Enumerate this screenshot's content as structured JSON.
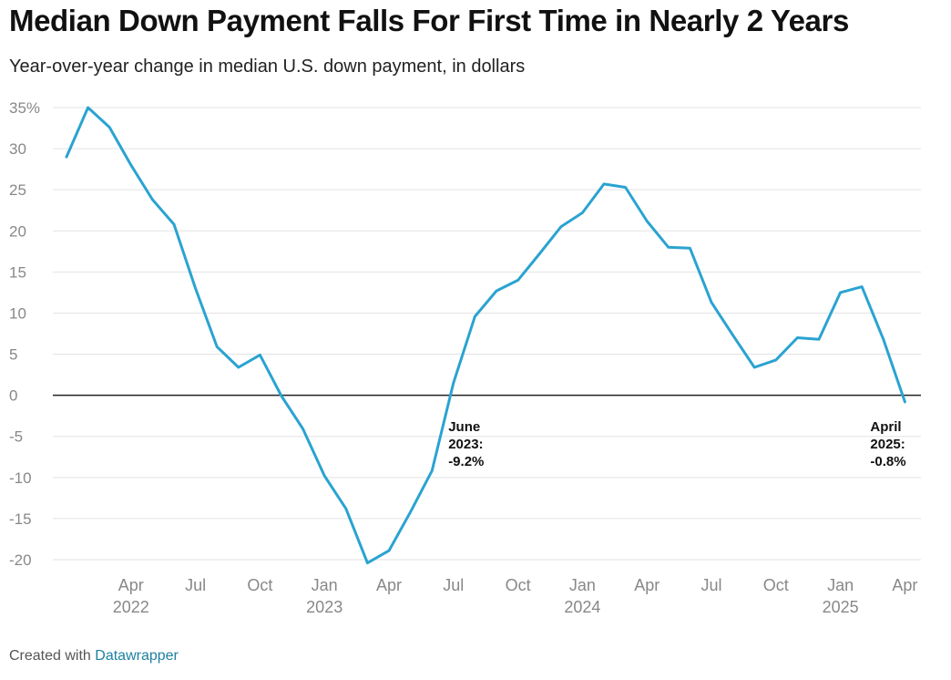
{
  "title": "Median Down Payment Falls For First Time in Nearly 2 Years",
  "subtitle": "Year-over-year change in median U.S. down payment, in dollars",
  "footer": {
    "prefix": "Created with",
    "link": "Datawrapper"
  },
  "chart_data": {
    "type": "line",
    "title": "Median Down Payment Falls For First Time in Nearly 2 Years",
    "subtitle": "Year-over-year change in median U.S. down payment, in dollars",
    "xlabel": "",
    "ylabel": "",
    "ylim": [
      -20,
      35
    ],
    "y_ticks": [
      35,
      30,
      25,
      20,
      15,
      10,
      5,
      0,
      -5,
      -10,
      -15,
      -20
    ],
    "y_tick_labels": [
      "35%",
      "30",
      "25",
      "20",
      "15",
      "10",
      "5",
      "0",
      "-5",
      "-10",
      "-15",
      "-20"
    ],
    "x_ticks": [
      {
        "date": "2022-04",
        "month": "Apr",
        "year": "2022"
      },
      {
        "date": "2022-07",
        "month": "Jul",
        "year": ""
      },
      {
        "date": "2022-10",
        "month": "Oct",
        "year": ""
      },
      {
        "date": "2023-01",
        "month": "Jan",
        "year": "2023"
      },
      {
        "date": "2023-04",
        "month": "Apr",
        "year": ""
      },
      {
        "date": "2023-07",
        "month": "Jul",
        "year": ""
      },
      {
        "date": "2023-10",
        "month": "Oct",
        "year": ""
      },
      {
        "date": "2024-01",
        "month": "Jan",
        "year": "2024"
      },
      {
        "date": "2024-04",
        "month": "Apr",
        "year": ""
      },
      {
        "date": "2024-07",
        "month": "Jul",
        "year": ""
      },
      {
        "date": "2024-10",
        "month": "Oct",
        "year": ""
      },
      {
        "date": "2025-01",
        "month": "Jan",
        "year": "2025"
      },
      {
        "date": "2025-04",
        "month": "Apr",
        "year": ""
      }
    ],
    "grid": true,
    "line_color": "#2aa3d1",
    "series": [
      {
        "x": [
          "2022-01",
          "2022-02",
          "2022-03",
          "2022-04",
          "2022-05",
          "2022-06",
          "2022-07",
          "2022-08",
          "2022-09",
          "2022-10",
          "2022-11",
          "2022-12",
          "2023-01",
          "2023-02",
          "2023-03",
          "2023-04",
          "2023-05",
          "2023-06",
          "2023-07",
          "2023-08",
          "2023-09",
          "2023-10",
          "2023-11",
          "2023-12",
          "2024-01",
          "2024-02",
          "2024-03",
          "2024-04",
          "2024-05",
          "2024-06",
          "2024-07",
          "2024-08",
          "2024-09",
          "2024-10",
          "2024-11",
          "2024-12",
          "2025-01",
          "2025-02",
          "2025-03",
          "2025-04"
        ],
        "values": [
          29.0,
          35.0,
          32.6,
          28.0,
          23.8,
          20.8,
          13.0,
          5.9,
          3.4,
          4.9,
          -0.1,
          -4.1,
          -9.8,
          -13.8,
          -20.4,
          -18.9,
          -14.2,
          -9.2,
          1.5,
          9.6,
          12.7,
          14.0,
          17.2,
          20.5,
          22.2,
          25.7,
          25.3,
          21.2,
          18.0,
          17.9,
          11.3,
          7.3,
          3.4,
          4.3,
          7.0,
          6.8,
          12.5,
          13.2,
          6.8,
          -0.8
        ]
      }
    ],
    "annotations": [
      {
        "date": "2023-06",
        "lines": [
          "June",
          "2023:",
          "-9.2%"
        ]
      },
      {
        "date": "2025-04",
        "lines": [
          "April",
          "2025:",
          "-0.8%"
        ]
      }
    ]
  }
}
